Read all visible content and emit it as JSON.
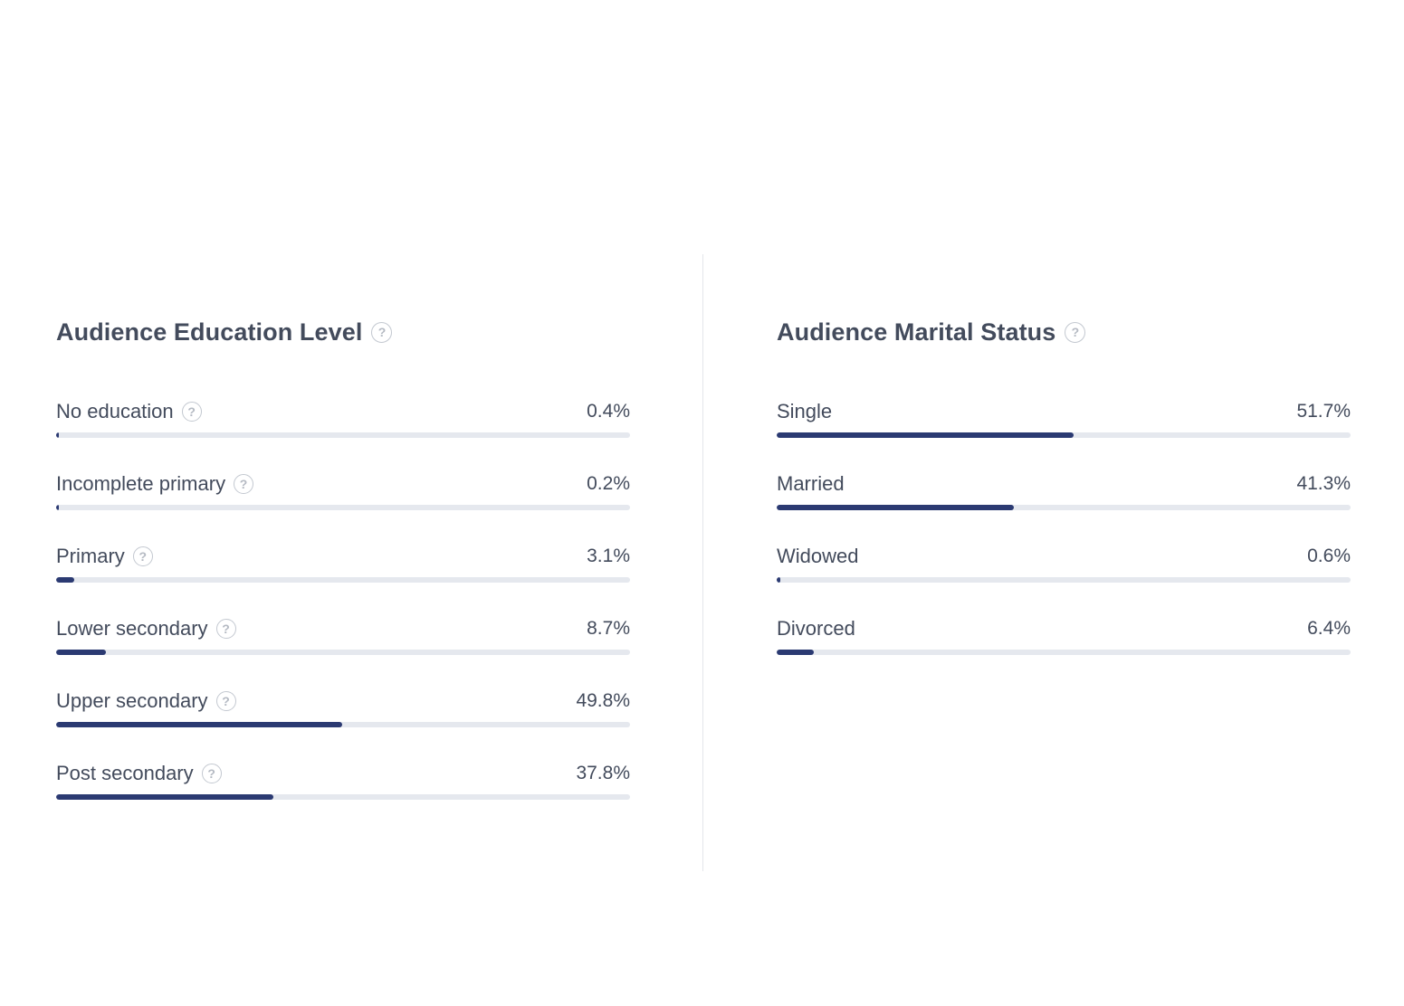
{
  "chart_data": [
    {
      "type": "bar",
      "title": "Audience Education Level",
      "title_help_icon": "question-circle-icon",
      "orientation": "horizontal",
      "value_unit": "%",
      "xlim": [
        0,
        100
      ],
      "categories": [
        "No education",
        "Incomplete primary",
        "Primary",
        "Lower secondary",
        "Upper secondary",
        "Post secondary"
      ],
      "values": [
        0.4,
        0.2,
        3.1,
        8.7,
        49.8,
        37.8
      ],
      "value_labels": [
        "0.4%",
        "0.2%",
        "3.1%",
        "8.7%",
        "49.8%",
        "37.8%"
      ],
      "category_help_icons": true
    },
    {
      "type": "bar",
      "title": "Audience Marital Status",
      "title_help_icon": "question-circle-icon",
      "orientation": "horizontal",
      "value_unit": "%",
      "xlim": [
        0,
        100
      ],
      "categories": [
        "Single",
        "Married",
        "Widowed",
        "Divorced"
      ],
      "values": [
        51.7,
        41.3,
        0.6,
        6.4
      ],
      "value_labels": [
        "51.7%",
        "41.3%",
        "0.6%",
        "6.4%"
      ],
      "category_help_icons": false
    }
  ],
  "colors": {
    "bar_fill": "#2b3a72",
    "bar_track": "#e5e8ee",
    "text": "#434b5c",
    "help_icon": "#b5bac3",
    "divider": "#e3e6ea"
  },
  "help_icon_glyph": "?"
}
